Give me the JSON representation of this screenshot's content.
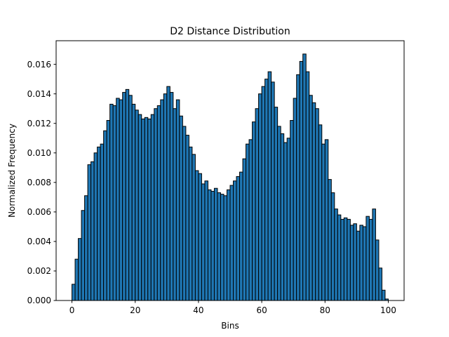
{
  "chart_data": {
    "type": "bar",
    "title": "D2 Distance Distribution",
    "xlabel": "Bins",
    "ylabel": "Normalized Frequency",
    "xlim": [
      -5,
      105
    ],
    "ylim": [
      0,
      0.0176
    ],
    "xticks": [
      0,
      20,
      40,
      60,
      80,
      100
    ],
    "xtick_labels": [
      "0",
      "20",
      "40",
      "60",
      "80",
      "100"
    ],
    "yticks": [
      0,
      0.002,
      0.004,
      0.006,
      0.008,
      0.01,
      0.012,
      0.014,
      0.016
    ],
    "ytick_labels": [
      "0.000",
      "0.002",
      "0.004",
      "0.006",
      "0.008",
      "0.010",
      "0.012",
      "0.014",
      "0.016"
    ],
    "grid": false,
    "bar_color": "#1f77b4",
    "edge_color": "#000000",
    "bin_start": 0,
    "bin_width": 1,
    "values": [
      0.0011,
      0.0028,
      0.0042,
      0.0061,
      0.0071,
      0.0092,
      0.0094,
      0.01,
      0.0104,
      0.0106,
      0.0115,
      0.0122,
      0.0133,
      0.0132,
      0.0137,
      0.0136,
      0.0141,
      0.0143,
      0.0139,
      0.0133,
      0.0129,
      0.0126,
      0.0123,
      0.0124,
      0.0123,
      0.0126,
      0.013,
      0.0132,
      0.0136,
      0.014,
      0.0145,
      0.0141,
      0.013,
      0.0136,
      0.0125,
      0.0118,
      0.0112,
      0.0104,
      0.0099,
      0.0088,
      0.0086,
      0.0079,
      0.0081,
      0.0075,
      0.0074,
      0.0076,
      0.0073,
      0.0072,
      0.0071,
      0.0075,
      0.0078,
      0.0081,
      0.0084,
      0.0087,
      0.0096,
      0.0106,
      0.0109,
      0.0121,
      0.013,
      0.014,
      0.0145,
      0.015,
      0.0155,
      0.0148,
      0.0131,
      0.0118,
      0.0113,
      0.0107,
      0.011,
      0.0122,
      0.0137,
      0.0153,
      0.0162,
      0.0167,
      0.0155,
      0.0139,
      0.0134,
      0.013,
      0.0119,
      0.0106,
      0.0109,
      0.0082,
      0.0073,
      0.0062,
      0.0058,
      0.0055,
      0.0056,
      0.0055,
      0.0051,
      0.0052,
      0.0047,
      0.0051,
      0.005,
      0.0057,
      0.0055,
      0.0062,
      0.0041,
      0.0022,
      0.0007,
      0.0001
    ]
  }
}
